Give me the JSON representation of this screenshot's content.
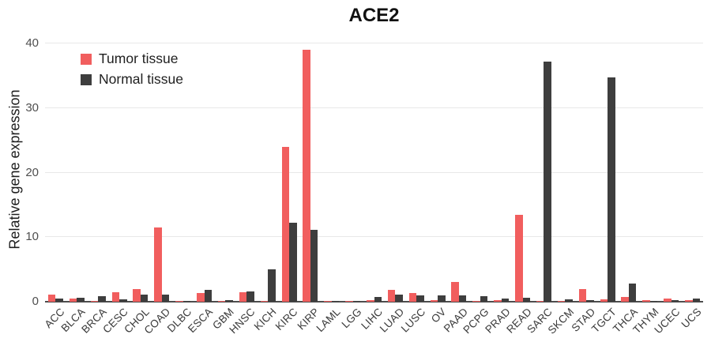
{
  "title": "ACE2",
  "ylabel": "Relative gene expression",
  "legend": {
    "items": [
      {
        "label": "Tumor tissue",
        "color": "#F15E5E"
      },
      {
        "label": "Normal tissue",
        "color": "#3E3E3E"
      }
    ]
  },
  "colors": {
    "tumor": "#F15E5E",
    "normal": "#3E3E3E",
    "gridline": "#e8e8e8",
    "axis": "#4d4d4d"
  },
  "chart_data": {
    "type": "bar",
    "title": "ACE2",
    "xlabel": "",
    "ylabel": "Relative gene expression",
    "ylim": [
      0,
      40
    ],
    "yticks": [
      0,
      10,
      20,
      30,
      40
    ],
    "grid": true,
    "legend_position": "top-left",
    "categories": [
      "ACC",
      "BLCA",
      "BRCA",
      "CESC",
      "CHOL",
      "COAD",
      "DLBC",
      "ESCA",
      "GBM",
      "HNSC",
      "KICH",
      "KIRC",
      "KIRP",
      "LAML",
      "LGG",
      "LIHC",
      "LUAD",
      "LUSC",
      "OV",
      "PAAD",
      "PCPG",
      "PRAD",
      "READ",
      "SARC",
      "SKCM",
      "STAD",
      "TGCT",
      "THCA",
      "THYM",
      "UCEC",
      "UCS"
    ],
    "series": [
      {
        "name": "Tumor tissue",
        "color": "#F15E5E",
        "values": [
          1.1,
          0.55,
          0.15,
          1.5,
          2.0,
          11.5,
          0.15,
          1.4,
          0.1,
          1.5,
          0.15,
          24.0,
          39.0,
          0.05,
          0.1,
          0.3,
          1.8,
          1.3,
          0.25,
          3.1,
          0.1,
          0.3,
          13.4,
          0.1,
          0.15,
          1.9,
          0.4,
          0.75,
          0.3,
          0.5,
          0.2
        ]
      },
      {
        "name": "Normal tissue",
        "color": "#3E3E3E",
        "values": [
          0.55,
          0.65,
          0.85,
          0.4,
          1.1,
          1.1,
          0.1,
          1.8,
          0.25,
          1.6,
          5.0,
          12.2,
          11.1,
          0.05,
          0.05,
          0.75,
          1.1,
          1.0,
          1.0,
          0.95,
          0.85,
          0.45,
          0.65,
          37.2,
          0.35,
          0.3,
          34.7,
          2.8,
          0.1,
          0.3,
          0.45
        ]
      }
    ]
  }
}
